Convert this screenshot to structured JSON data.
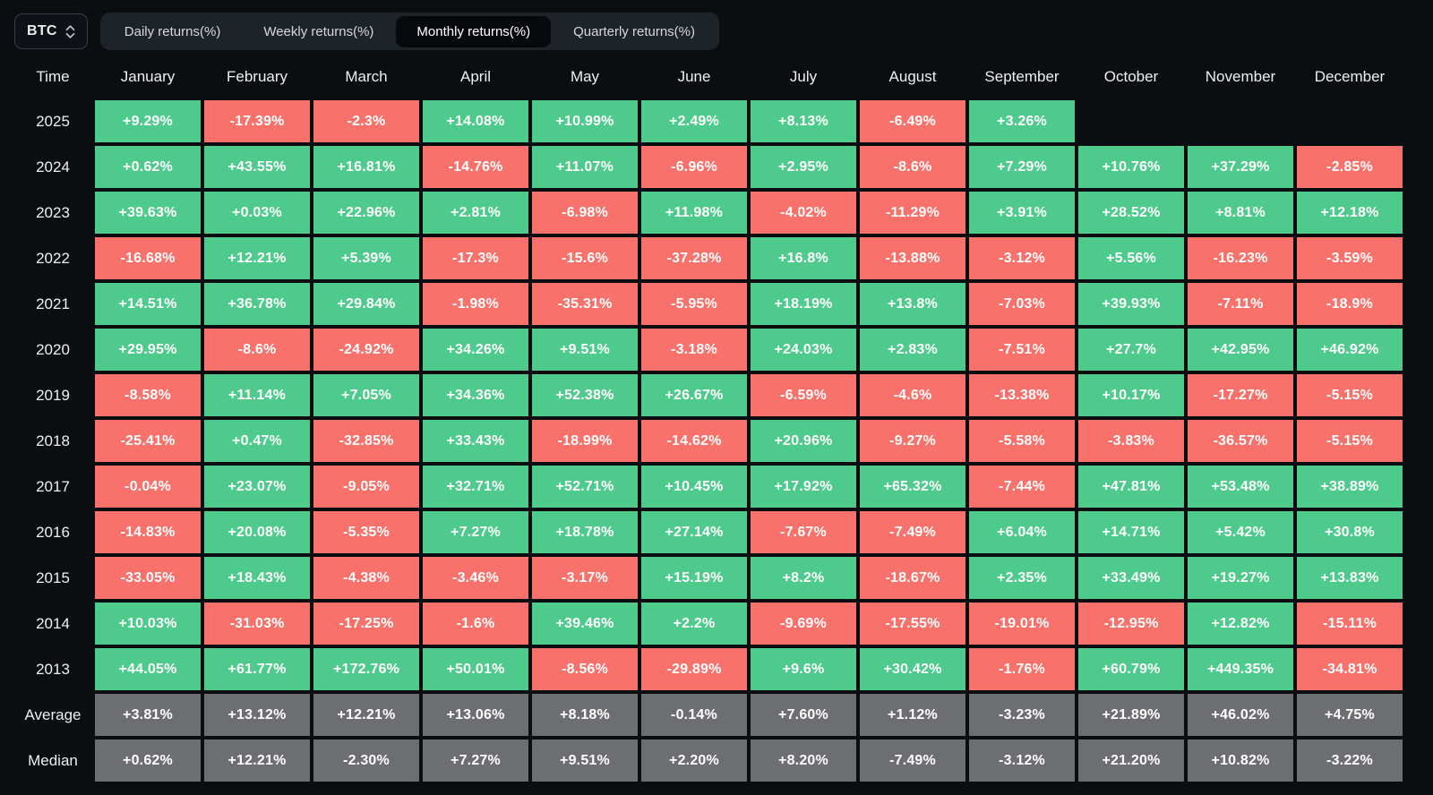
{
  "toolbar": {
    "asset_label": "BTC",
    "tabs": [
      {
        "label": "Daily returns(%)",
        "active": false
      },
      {
        "label": "Weekly returns(%)",
        "active": false
      },
      {
        "label": "Monthly returns(%)",
        "active": true
      },
      {
        "label": "Quarterly returns(%)",
        "active": false
      }
    ]
  },
  "chart_data": {
    "type": "heatmap",
    "title": "BTC Monthly returns(%)",
    "legend_position": "none",
    "colors": {
      "positive": "#4ecb8c",
      "negative": "#f8716b",
      "summary": "#6d6e71",
      "background": "#0b0e11"
    },
    "columns": [
      "Time",
      "January",
      "February",
      "March",
      "April",
      "May",
      "June",
      "July",
      "August",
      "September",
      "October",
      "November",
      "December"
    ],
    "rows": [
      {
        "label": "2025",
        "summary": false,
        "values": [
          "+9.29%",
          "-17.39%",
          "-2.3%",
          "+14.08%",
          "+10.99%",
          "+2.49%",
          "+8.13%",
          "-6.49%",
          "+3.26%",
          null,
          null,
          null
        ]
      },
      {
        "label": "2024",
        "summary": false,
        "values": [
          "+0.62%",
          "+43.55%",
          "+16.81%",
          "-14.76%",
          "+11.07%",
          "-6.96%",
          "+2.95%",
          "-8.6%",
          "+7.29%",
          "+10.76%",
          "+37.29%",
          "-2.85%"
        ]
      },
      {
        "label": "2023",
        "summary": false,
        "values": [
          "+39.63%",
          "+0.03%",
          "+22.96%",
          "+2.81%",
          "-6.98%",
          "+11.98%",
          "-4.02%",
          "-11.29%",
          "+3.91%",
          "+28.52%",
          "+8.81%",
          "+12.18%"
        ]
      },
      {
        "label": "2022",
        "summary": false,
        "values": [
          "-16.68%",
          "+12.21%",
          "+5.39%",
          "-17.3%",
          "-15.6%",
          "-37.28%",
          "+16.8%",
          "-13.88%",
          "-3.12%",
          "+5.56%",
          "-16.23%",
          "-3.59%"
        ]
      },
      {
        "label": "2021",
        "summary": false,
        "values": [
          "+14.51%",
          "+36.78%",
          "+29.84%",
          "-1.98%",
          "-35.31%",
          "-5.95%",
          "+18.19%",
          "+13.8%",
          "-7.03%",
          "+39.93%",
          "-7.11%",
          "-18.9%"
        ]
      },
      {
        "label": "2020",
        "summary": false,
        "values": [
          "+29.95%",
          "-8.6%",
          "-24.92%",
          "+34.26%",
          "+9.51%",
          "-3.18%",
          "+24.03%",
          "+2.83%",
          "-7.51%",
          "+27.7%",
          "+42.95%",
          "+46.92%"
        ]
      },
      {
        "label": "2019",
        "summary": false,
        "values": [
          "-8.58%",
          "+11.14%",
          "+7.05%",
          "+34.36%",
          "+52.38%",
          "+26.67%",
          "-6.59%",
          "-4.6%",
          "-13.38%",
          "+10.17%",
          "-17.27%",
          "-5.15%"
        ]
      },
      {
        "label": "2018",
        "summary": false,
        "values": [
          "-25.41%",
          "+0.47%",
          "-32.85%",
          "+33.43%",
          "-18.99%",
          "-14.62%",
          "+20.96%",
          "-9.27%",
          "-5.58%",
          "-3.83%",
          "-36.57%",
          "-5.15%"
        ]
      },
      {
        "label": "2017",
        "summary": false,
        "values": [
          "-0.04%",
          "+23.07%",
          "-9.05%",
          "+32.71%",
          "+52.71%",
          "+10.45%",
          "+17.92%",
          "+65.32%",
          "-7.44%",
          "+47.81%",
          "+53.48%",
          "+38.89%"
        ]
      },
      {
        "label": "2016",
        "summary": false,
        "values": [
          "-14.83%",
          "+20.08%",
          "-5.35%",
          "+7.27%",
          "+18.78%",
          "+27.14%",
          "-7.67%",
          "-7.49%",
          "+6.04%",
          "+14.71%",
          "+5.42%",
          "+30.8%"
        ]
      },
      {
        "label": "2015",
        "summary": false,
        "values": [
          "-33.05%",
          "+18.43%",
          "-4.38%",
          "-3.46%",
          "-3.17%",
          "+15.19%",
          "+8.2%",
          "-18.67%",
          "+2.35%",
          "+33.49%",
          "+19.27%",
          "+13.83%"
        ]
      },
      {
        "label": "2014",
        "summary": false,
        "values": [
          "+10.03%",
          "-31.03%",
          "-17.25%",
          "-1.6%",
          "+39.46%",
          "+2.2%",
          "-9.69%",
          "-17.55%",
          "-19.01%",
          "-12.95%",
          "+12.82%",
          "-15.11%"
        ]
      },
      {
        "label": "2013",
        "summary": false,
        "values": [
          "+44.05%",
          "+61.77%",
          "+172.76%",
          "+50.01%",
          "-8.56%",
          "-29.89%",
          "+9.6%",
          "+30.42%",
          "-1.76%",
          "+60.79%",
          "+449.35%",
          "-34.81%"
        ]
      },
      {
        "label": "Average",
        "summary": true,
        "values": [
          "+3.81%",
          "+13.12%",
          "+12.21%",
          "+13.06%",
          "+8.18%",
          "-0.14%",
          "+7.60%",
          "+1.12%",
          "-3.23%",
          "+21.89%",
          "+46.02%",
          "+4.75%"
        ]
      },
      {
        "label": "Median",
        "summary": true,
        "values": [
          "+0.62%",
          "+12.21%",
          "-2.30%",
          "+7.27%",
          "+9.51%",
          "+2.20%",
          "+8.20%",
          "-7.49%",
          "-3.12%",
          "+21.20%",
          "+10.82%",
          "-3.22%"
        ]
      }
    ]
  }
}
